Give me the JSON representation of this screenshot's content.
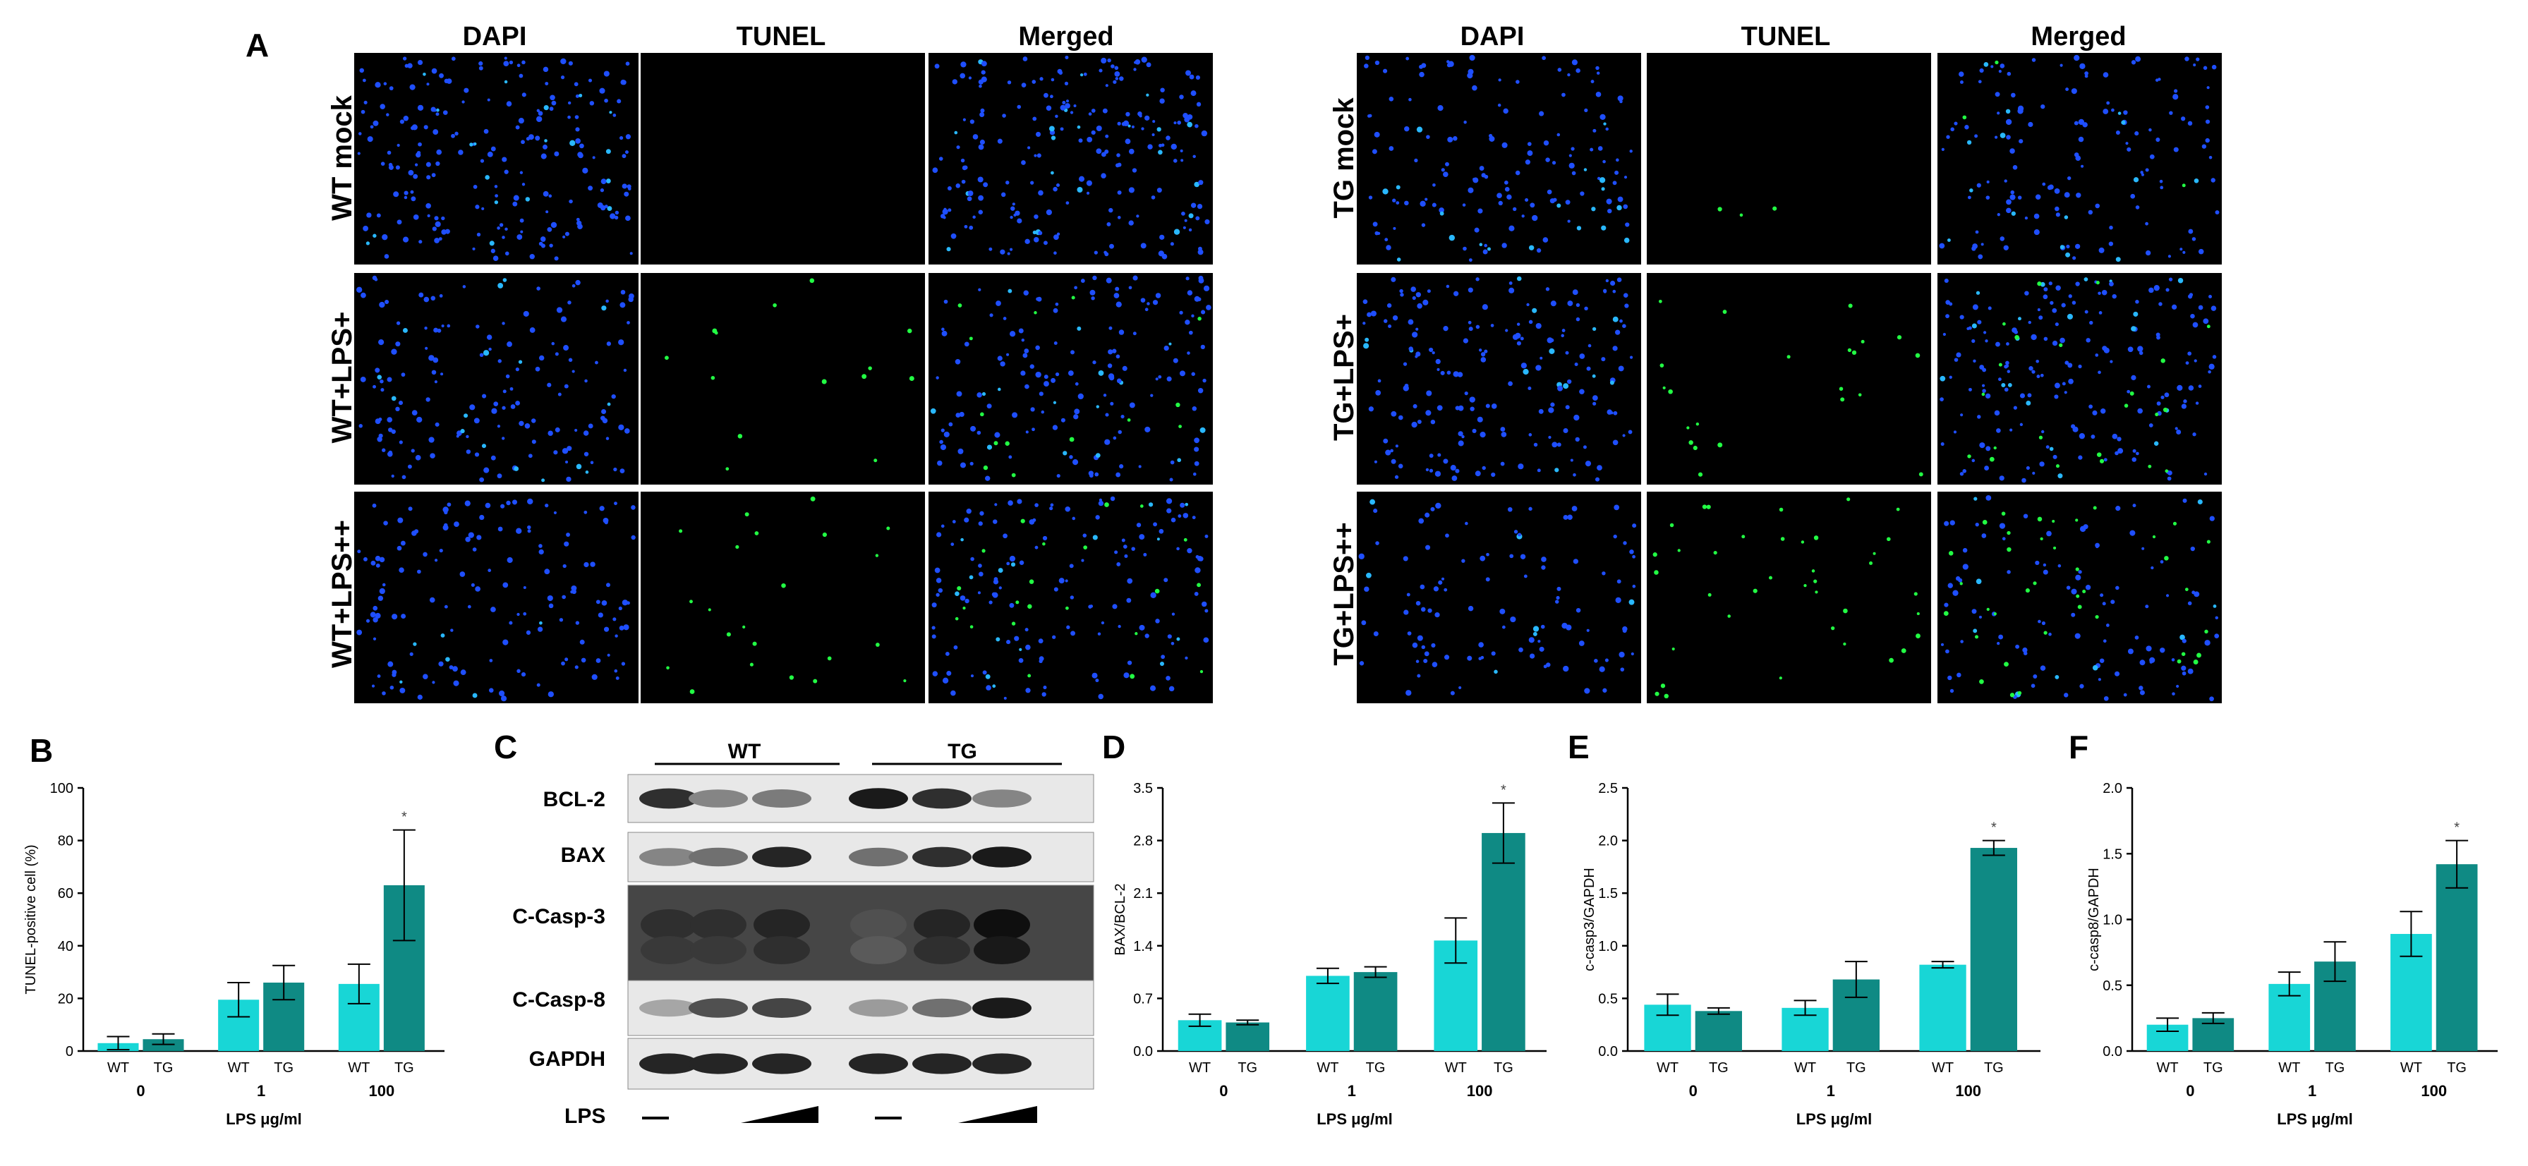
{
  "figure": {
    "panel_letters": {
      "A": "A",
      "B": "B",
      "C": "C",
      "D": "D",
      "E": "E",
      "F": "F"
    },
    "microscopy": {
      "columns": [
        "DAPI",
        "TUNEL",
        "Merged"
      ],
      "left_rows": [
        "WT mock",
        "WT+LPS+",
        "WT+LPS++"
      ],
      "right_rows": [
        "TG mock",
        "TG+LPS+",
        "TG+LPS++"
      ],
      "colors": {
        "background": "#000000",
        "dapi": "#1f4fff",
        "dapi_bright": "#29b8ff",
        "tunel": "#22ff44"
      }
    },
    "western_blot": {
      "groups": [
        "WT",
        "TG"
      ],
      "bands": [
        "BCL-2",
        "BAX",
        "C-Casp-3",
        "C-Casp-8",
        "GAPDH"
      ],
      "lps_label": "LPS",
      "band_intensity": {
        "BCL-2": [
          0.85,
          0.45,
          0.5,
          0.95,
          0.85,
          0.45
        ],
        "BAX": [
          0.45,
          0.55,
          0.9,
          0.55,
          0.85,
          0.95
        ],
        "C-Casp-3": [
          0.85,
          0.85,
          0.9,
          0.7,
          0.9,
          1.0
        ],
        "C-Casp-8": [
          0.3,
          0.7,
          0.75,
          0.35,
          0.55,
          0.95
        ],
        "GAPDH": [
          0.9,
          0.9,
          0.9,
          0.9,
          0.9,
          0.9
        ]
      }
    },
    "bar_colors": {
      "WT": "#18d6d6",
      "TG": "#0f8a84"
    }
  },
  "chart_data": [
    {
      "panel": "B",
      "type": "bar",
      "groups": [
        "0",
        "1",
        "100"
      ],
      "group_member_labels": [
        "WT",
        "TG"
      ],
      "series": [
        {
          "name": "WT",
          "values": [
            3,
            19.5,
            25.5
          ],
          "errors": [
            2.5,
            6.5,
            7.5
          ]
        },
        {
          "name": "TG",
          "values": [
            4.5,
            26,
            63
          ],
          "errors": [
            2,
            6.5,
            21
          ]
        }
      ],
      "significance": [
        "",
        "",
        "*"
      ],
      "xlabel": "LPS μg/ml",
      "ylabel": "TUNEL-positive cell (%)",
      "ylim": [
        0,
        100
      ],
      "yticks": [
        "0",
        "20",
        "40",
        "60",
        "80",
        "100"
      ]
    },
    {
      "panel": "D",
      "type": "bar",
      "groups": [
        "0",
        "1",
        "100"
      ],
      "group_member_labels": [
        "WT",
        "TG"
      ],
      "series": [
        {
          "name": "WT",
          "values": [
            0.41,
            1.0,
            1.47
          ],
          "errors": [
            0.08,
            0.1,
            0.3
          ]
        },
        {
          "name": "TG",
          "values": [
            0.38,
            1.05,
            2.9
          ],
          "errors": [
            0.03,
            0.07,
            0.4
          ]
        }
      ],
      "significance": [
        "",
        "",
        "*"
      ],
      "xlabel": "LPS μg/ml",
      "ylabel": "BAX/BCL-2",
      "ylim": [
        0,
        3.5
      ],
      "yticks": [
        "0.0",
        "0.7",
        "1.4",
        "2.1",
        "2.8",
        "3.5"
      ]
    },
    {
      "panel": "E",
      "type": "bar",
      "groups": [
        "0",
        "1",
        "100"
      ],
      "group_member_labels": [
        "WT",
        "TG"
      ],
      "series": [
        {
          "name": "WT",
          "values": [
            0.44,
            0.41,
            0.82
          ],
          "errors": [
            0.1,
            0.07,
            0.03
          ]
        },
        {
          "name": "TG",
          "values": [
            0.38,
            0.68,
            1.93
          ],
          "errors": [
            0.03,
            0.17,
            0.07
          ]
        }
      ],
      "significance": [
        "",
        "",
        "*"
      ],
      "xlabel": "LPS μg/ml",
      "ylabel": "c-casp3/GAPDH",
      "ylim": [
        0,
        2.5
      ],
      "yticks": [
        "0.0",
        "0.5",
        "1.0",
        "1.5",
        "2.0",
        "2.5"
      ]
    },
    {
      "panel": "F",
      "type": "bar",
      "groups": [
        "0",
        "1",
        "100"
      ],
      "group_member_labels": [
        "WT",
        "TG"
      ],
      "series": [
        {
          "name": "WT",
          "values": [
            0.2,
            0.51,
            0.89
          ],
          "errors": [
            0.05,
            0.09,
            0.17
          ]
        },
        {
          "name": "TG",
          "values": [
            0.25,
            0.68,
            1.42
          ],
          "errors": [
            0.04,
            0.15,
            0.18
          ]
        }
      ],
      "significance": [
        "",
        "",
        "*"
      ],
      "xlabel": "LPS μg/ml",
      "ylabel": "c-casp8/GAPDH",
      "ylim": [
        0,
        2.0
      ],
      "yticks": [
        "0.0",
        "0.5",
        "1.0",
        "1.5",
        "2.0"
      ]
    }
  ]
}
